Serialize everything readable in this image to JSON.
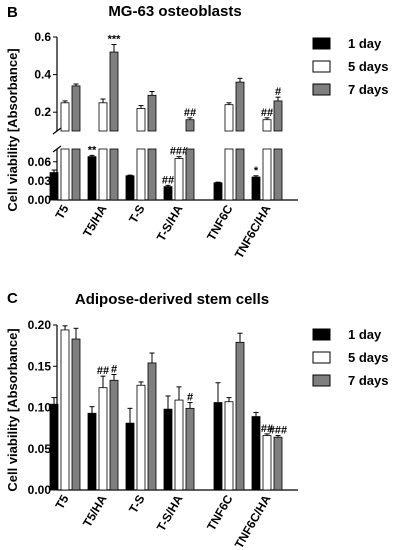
{
  "colors": {
    "day1": "#000000",
    "day5": "#ffffff",
    "day7": "#7f7f7f",
    "stroke": "#000000"
  },
  "chart_data": [
    {
      "type": "bar",
      "panel": "B",
      "title": "MG-63 osteoblasts",
      "ylabel": "Cell viability [Absorbance]",
      "categories": [
        "T5",
        "T5/HA",
        "T-S",
        "T-S/HA",
        "TNF6C",
        "TNF6C/HA"
      ],
      "broken_axis": {
        "lower": {
          "ylim": [
            0,
            0.08
          ],
          "ticks": [
            "0.00",
            "0.03",
            "0.06"
          ]
        },
        "upper": {
          "ylim": [
            0.1,
            0.6
          ],
          "ticks": [
            "0.2",
            "0.4",
            "0.6"
          ]
        }
      },
      "legend": {
        "placement": "right",
        "entries": [
          "1 day",
          "5 days",
          "7 days"
        ]
      },
      "series": [
        {
          "name": "1 day",
          "values": [
            0.043,
            0.068,
            0.038,
            0.021,
            0.027,
            0.036
          ],
          "errors": [
            0.004,
            0.002,
            0.001,
            0.002,
            0.001,
            0.002
          ],
          "labels": [
            "",
            "**",
            "",
            "##",
            "",
            "*"
          ]
        },
        {
          "name": "5 days",
          "values": [
            0.25,
            0.25,
            0.22,
            0.065,
            0.24,
            0.16
          ],
          "errors": [
            0.01,
            0.02,
            0.015,
            0.003,
            0.01,
            0.01
          ],
          "labels": [
            "",
            "",
            "",
            "###",
            "",
            "##"
          ]
        },
        {
          "name": "7 days",
          "values": [
            0.34,
            0.52,
            0.29,
            0.16,
            0.36,
            0.26
          ],
          "errors": [
            0.01,
            0.04,
            0.02,
            0.01,
            0.02,
            0.02
          ],
          "labels": [
            "",
            "***",
            "",
            "##",
            "",
            "#"
          ]
        }
      ]
    },
    {
      "type": "bar",
      "panel": "C",
      "title": "Adipose-derived stem cells",
      "ylabel": "Cell viability [Absorbance]",
      "categories": [
        "T5",
        "T5/HA",
        "T-S",
        "T-S/HA",
        "TNF6C",
        "TNF6C/HA"
      ],
      "ylim": [
        0,
        0.2
      ],
      "yticks": [
        "0.00",
        "0.05",
        "0.10",
        "0.15",
        "0.20"
      ],
      "legend": {
        "placement": "right",
        "entries": [
          "1 day",
          "5 days",
          "7 days"
        ]
      },
      "series": [
        {
          "name": "1 day",
          "values": [
            0.104,
            0.093,
            0.081,
            0.098,
            0.106,
            0.089
          ],
          "errors": [
            0.008,
            0.008,
            0.018,
            0.016,
            0.024,
            0.005
          ],
          "labels": [
            "",
            "",
            "",
            "",
            "",
            ""
          ]
        },
        {
          "name": "5 days",
          "values": [
            0.194,
            0.124,
            0.127,
            0.109,
            0.107,
            0.066
          ],
          "errors": [
            0.005,
            0.014,
            0.004,
            0.016,
            0.005,
            0.002
          ],
          "labels": [
            "",
            "##",
            "",
            "",
            "",
            "##"
          ]
        },
        {
          "name": "7 days",
          "values": [
            0.183,
            0.133,
            0.154,
            0.099,
            0.179,
            0.064
          ],
          "errors": [
            0.013,
            0.007,
            0.012,
            0.007,
            0.011,
            0.002
          ],
          "labels": [
            "",
            "#",
            "",
            "#",
            "",
            "###"
          ]
        }
      ]
    }
  ]
}
